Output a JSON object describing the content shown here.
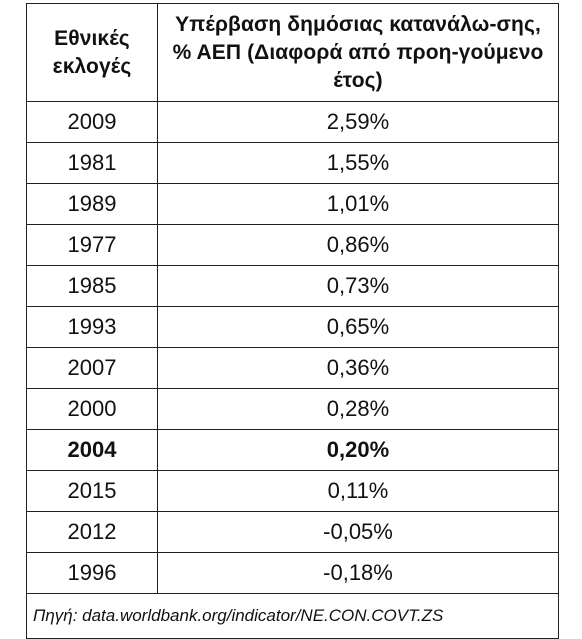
{
  "table": {
    "headers": [
      "Εθνικές εκλογές",
      "Υπέρβαση δημόσιας κατανάλω-σης, % ΑΕΠ (Διαφορά από προη-γούμενο έτος)"
    ],
    "rows": [
      {
        "year": "2009",
        "value": "2,59%"
      },
      {
        "year": "1981",
        "value": "1,55%"
      },
      {
        "year": "1989",
        "value": "1,01%"
      },
      {
        "year": "1977",
        "value": "0,86%"
      },
      {
        "year": "1985",
        "value": "0,73%"
      },
      {
        "year": "1993",
        "value": "0,65%"
      },
      {
        "year": "2007",
        "value": "0,36%"
      },
      {
        "year": "2000",
        "value": "0,28%"
      },
      {
        "year": "2004",
        "value": "0,20%",
        "bold": true
      },
      {
        "year": "2015",
        "value": "0,11%"
      },
      {
        "year": "2012",
        "value": "-0,05%"
      },
      {
        "year": "1996",
        "value": "-0,18%"
      }
    ],
    "source": "Πηγή: data.worldbank.org/indicator/NE.CON.COVT.ZS"
  }
}
